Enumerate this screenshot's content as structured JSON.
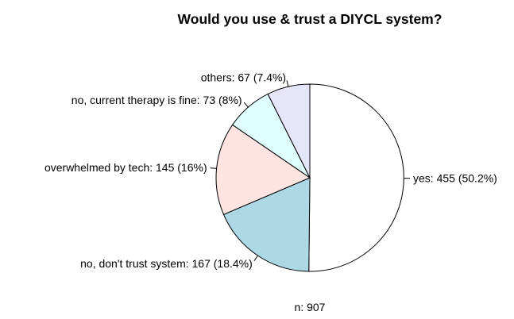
{
  "chart_data": {
    "type": "pie",
    "title": "Would you use & trust a DIYCL system?",
    "footer": "n: 907",
    "total": 907,
    "start_angle_deg": 90,
    "direction": "clockwise",
    "slices": [
      {
        "label": "yes: 455 (50.2%)",
        "value": 455,
        "percent": 50.2,
        "color": "#ffffff"
      },
      {
        "label": "no, don't trust system: 167 (18.4%)",
        "value": 167,
        "percent": 18.4,
        "color": "#add8e6"
      },
      {
        "label": "overwhelmed by tech: 145 (16%)",
        "value": 145,
        "percent": 16,
        "color": "#ffe4e1"
      },
      {
        "label": "no, current therapy is fine: 73 (8%)",
        "value": 73,
        "percent": 8,
        "color": "#e0ffff"
      },
      {
        "label": "others: 67 (7.4%)",
        "value": 67,
        "percent": 7.4,
        "color": "#e6e6fa"
      }
    ]
  }
}
